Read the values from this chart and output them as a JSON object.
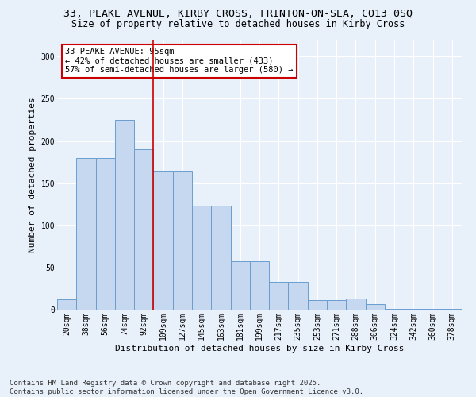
{
  "title_line1": "33, PEAKE AVENUE, KIRBY CROSS, FRINTON-ON-SEA, CO13 0SQ",
  "title_line2": "Size of property relative to detached houses in Kirby Cross",
  "xlabel": "Distribution of detached houses by size in Kirby Cross",
  "ylabel": "Number of detached properties",
  "categories": [
    "20sqm",
    "38sqm",
    "56sqm",
    "74sqm",
    "92sqm",
    "109sqm",
    "127sqm",
    "145sqm",
    "163sqm",
    "181sqm",
    "199sqm",
    "217sqm",
    "235sqm",
    "253sqm",
    "271sqm",
    "288sqm",
    "306sqm",
    "324sqm",
    "342sqm",
    "360sqm",
    "378sqm"
  ],
  "values": [
    12,
    180,
    180,
    225,
    190,
    165,
    165,
    123,
    123,
    57,
    57,
    33,
    33,
    11,
    11,
    13,
    7,
    1,
    1,
    1,
    1
  ],
  "bar_color": "#c5d8f0",
  "bar_edge_color": "#6a9ecf",
  "vline_pos": 4.5,
  "vline_color": "#cc0000",
  "annotation_text": "33 PEAKE AVENUE: 95sqm\n← 42% of detached houses are smaller (433)\n57% of semi-detached houses are larger (580) →",
  "annotation_box_color": "#ffffff",
  "annotation_box_edge": "#cc0000",
  "ylim_max": 320,
  "yticks": [
    0,
    50,
    100,
    150,
    200,
    250,
    300
  ],
  "bg_color": "#e8f0fa",
  "grid_color": "#ffffff",
  "footer": "Contains HM Land Registry data © Crown copyright and database right 2025.\nContains public sector information licensed under the Open Government Licence v3.0.",
  "title_fontsize": 9.5,
  "subtitle_fontsize": 8.5,
  "axis_label_fontsize": 8,
  "tick_fontsize": 7,
  "annot_fontsize": 7.5,
  "footer_fontsize": 6.5
}
